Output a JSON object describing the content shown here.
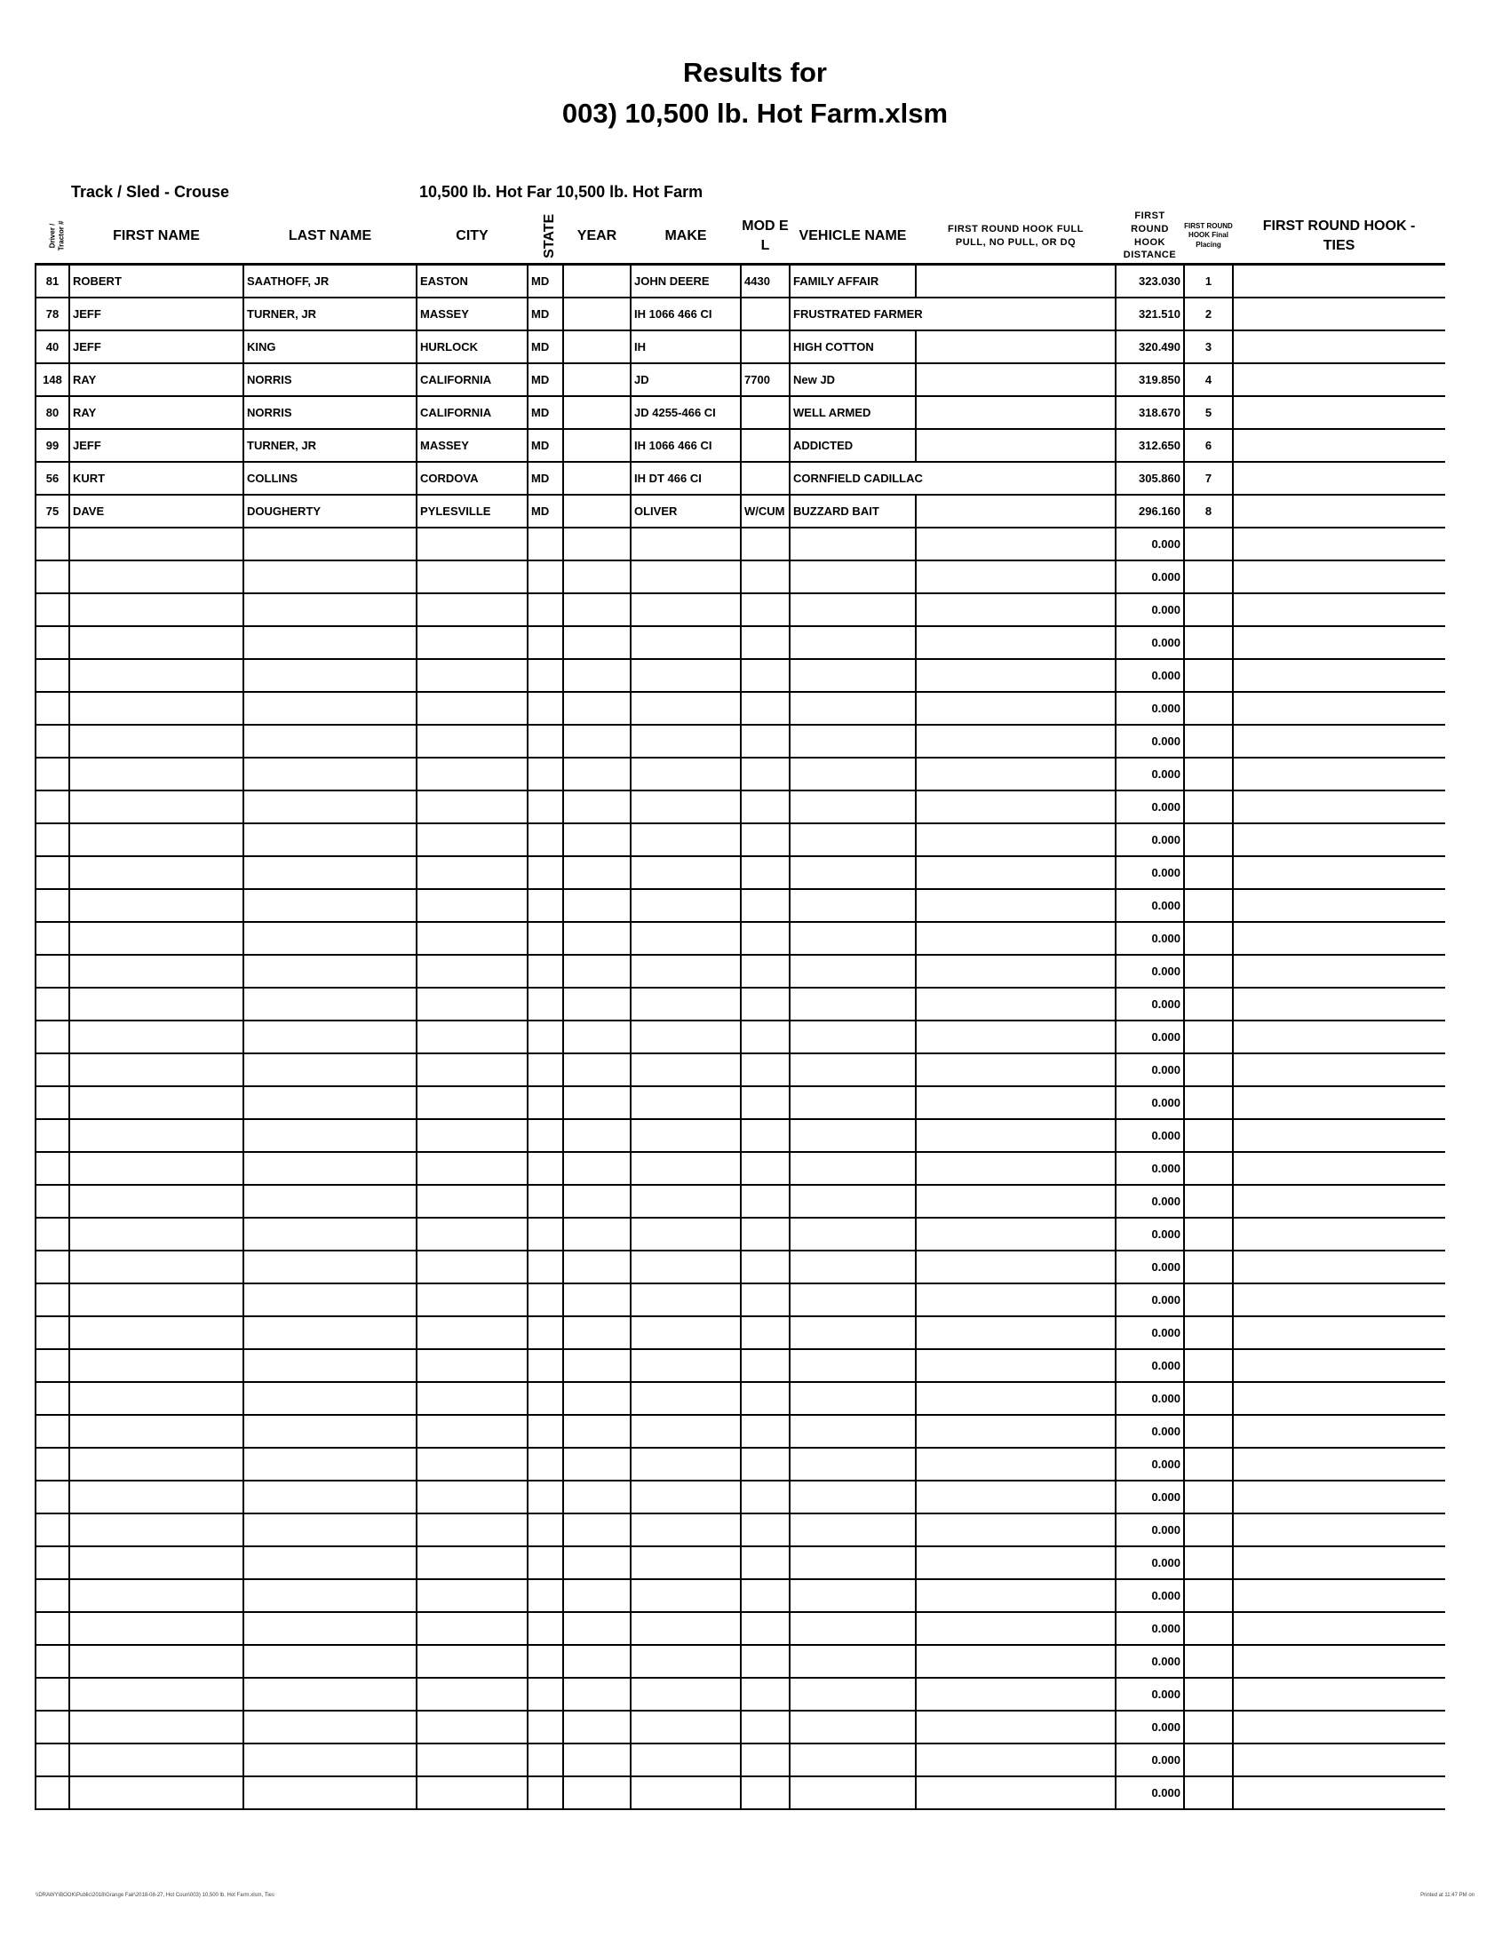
{
  "title_line1": "Results for",
  "title_line2": "003) 10,500 lb. Hot Farm.xlsm",
  "track_sled": "Track / Sled - Crouse",
  "class_label": "10,500 lb. Hot Far 10,500 lb. Hot Farm",
  "columns": {
    "driver": "Driver / Tractor #",
    "first_name": "FIRST NAME",
    "last_name": "LAST NAME",
    "city": "CITY",
    "state": "STATE",
    "year": "YEAR",
    "make": "MAKE",
    "model": "MOD EL",
    "vehicle": "VEHICLE NAME",
    "hook_status": "FIRST ROUND HOOK FULL PULL, NO PULL, OR DQ",
    "hook_distance": "FIRST ROUND HOOK DISTANCE",
    "placing": "FIRST ROUND HOOK Final Placing",
    "ties": "FIRST ROUND HOOK - TIES"
  },
  "rows": [
    {
      "num": "81",
      "first": "ROBERT",
      "last": "SAATHOFF, JR",
      "city": "EASTON",
      "state": "MD",
      "year": "",
      "make": "JOHN DEERE",
      "model": "4430",
      "vehicle": "FAMILY AFFAIR",
      "status": "",
      "distance": "323.030",
      "place": "1",
      "ties": ""
    },
    {
      "num": "78",
      "first": "JEFF",
      "last": "TURNER, JR",
      "city": "MASSEY",
      "state": "MD",
      "year": "",
      "make": "IH 1066 466 CI",
      "model": "",
      "vehicle": "FRUSTRATED FARMER",
      "status": "",
      "distance": "321.510",
      "place": "2",
      "ties": "",
      "overflow": true
    },
    {
      "num": "40",
      "first": "JEFF",
      "last": "KING",
      "city": "HURLOCK",
      "state": "MD",
      "year": "",
      "make": "IH",
      "model": "",
      "vehicle": "HIGH COTTON",
      "status": "",
      "distance": "320.490",
      "place": "3",
      "ties": ""
    },
    {
      "num": "148",
      "first": "RAY",
      "last": "NORRIS",
      "city": "CALIFORNIA",
      "state": "MD",
      "year": "",
      "make": "JD",
      "model": "7700",
      "vehicle": "New JD",
      "status": "",
      "distance": "319.850",
      "place": "4",
      "ties": ""
    },
    {
      "num": "80",
      "first": "RAY",
      "last": "NORRIS",
      "city": "CALIFORNIA",
      "state": "MD",
      "year": "",
      "make": "JD 4255-466 CI",
      "model": "",
      "vehicle": "WELL ARMED",
      "status": "",
      "distance": "318.670",
      "place": "5",
      "ties": ""
    },
    {
      "num": "99",
      "first": "JEFF",
      "last": "TURNER, JR",
      "city": "MASSEY",
      "state": "MD",
      "year": "",
      "make": "IH 1066 466 CI",
      "model": "",
      "vehicle": "ADDICTED",
      "status": "",
      "distance": "312.650",
      "place": "6",
      "ties": ""
    },
    {
      "num": "56",
      "first": "KURT",
      "last": "COLLINS",
      "city": "CORDOVA",
      "state": "MD",
      "year": "",
      "make": "IH DT 466 CI",
      "model": "",
      "vehicle": "CORNFIELD CADILLAC",
      "status": "",
      "distance": "305.860",
      "place": "7",
      "ties": "",
      "overflow": true
    },
    {
      "num": "75",
      "first": "DAVE",
      "last": "DOUGHERTY",
      "city": "PYLESVILLE",
      "state": "MD",
      "year": "",
      "make": "OLIVER",
      "model": "W/CUM",
      "vehicle": "BUZZARD BAIT",
      "status": "",
      "distance": "296.160",
      "place": "8",
      "ties": ""
    }
  ],
  "empty_row_distance": "0.000",
  "empty_row_count": 39,
  "footer_left": "\\\\DRAWY\\BOOK\\Public\\2018\\Grange Fair\\2018-08-27, Hot Coun\\003) 10,500 lb. Hot Farm.xlsm, Ties",
  "footer_right": "Printed at 11:47 PM on"
}
